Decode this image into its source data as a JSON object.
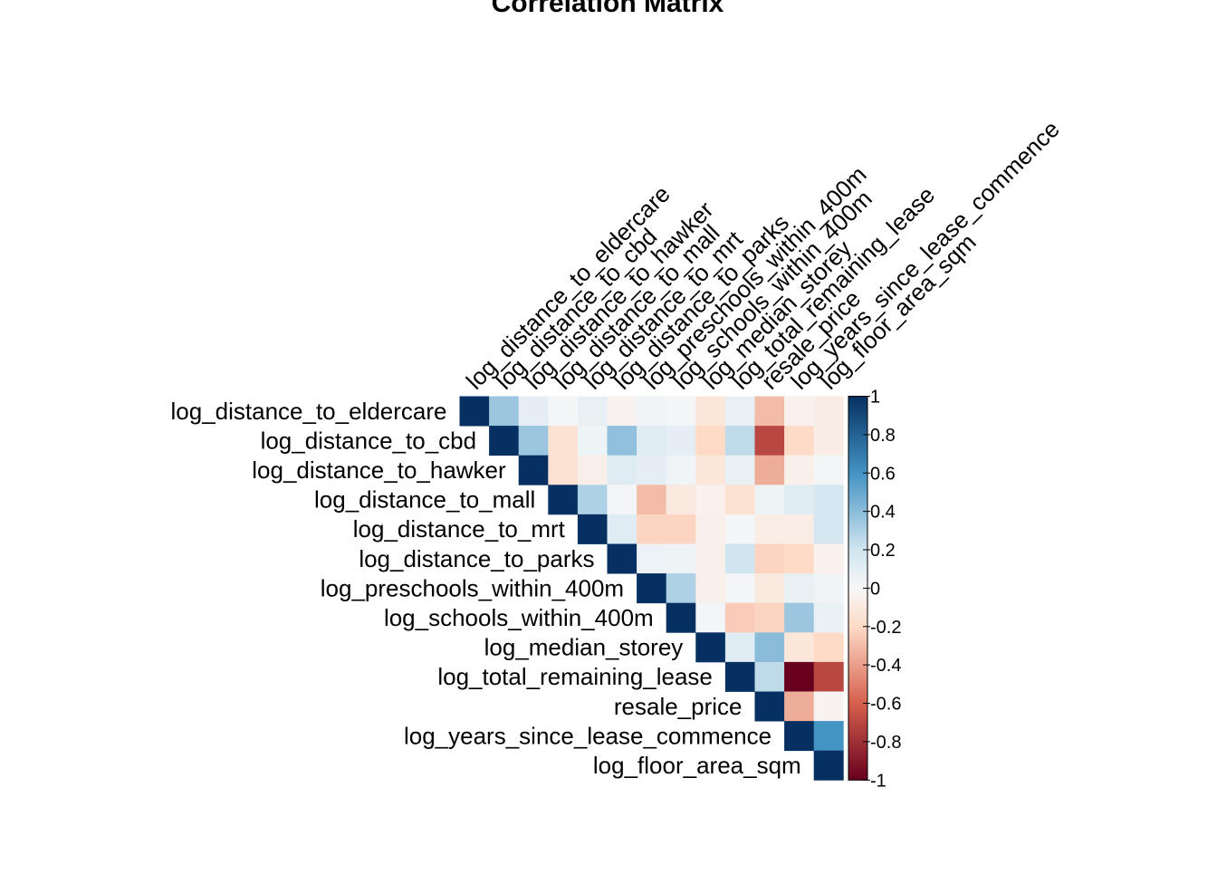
{
  "chart_data": {
    "type": "heatmap",
    "title": "Correlation Matrix",
    "layout": "upper-triangle",
    "variables": [
      "log_distance_to_eldercare",
      "log_distance_to_cbd",
      "log_distance_to_hawker",
      "log_distance_to_mall",
      "log_distance_to_mrt",
      "log_distance_to_parks",
      "log_preschools_within_400m",
      "log_schools_within_400m",
      "log_median_storey",
      "log_total_remaining_lease",
      "resale_price",
      "log_years_since_lease_commence",
      "log_floor_area_sqm"
    ],
    "matrix": [
      [
        1,
        0.35,
        0.1,
        0.02,
        0.08,
        -0.03,
        0.03,
        0.02,
        -0.12,
        0.08,
        -0.3,
        -0.04,
        -0.08
      ],
      [
        null,
        1,
        0.35,
        -0.15,
        0.05,
        0.38,
        0.12,
        0.1,
        -0.2,
        0.25,
        -0.7,
        -0.2,
        -0.08
      ],
      [
        null,
        null,
        1,
        -0.15,
        -0.06,
        0.12,
        0.1,
        0.03,
        -0.12,
        0.08,
        -0.35,
        -0.05,
        0.02
      ],
      [
        null,
        null,
        null,
        1,
        0.3,
        0.02,
        -0.3,
        -0.1,
        -0.04,
        -0.15,
        0.05,
        0.12,
        0.18
      ],
      [
        null,
        null,
        null,
        null,
        1,
        0.12,
        -0.22,
        -0.22,
        -0.05,
        0.02,
        -0.07,
        -0.07,
        0.18
      ],
      [
        null,
        null,
        null,
        null,
        null,
        1,
        0.06,
        0.05,
        -0.06,
        0.2,
        -0.22,
        -0.2,
        -0.04
      ],
      [
        null,
        null,
        null,
        null,
        null,
        null,
        1,
        0.3,
        -0.05,
        0.02,
        -0.1,
        0.08,
        0.03
      ],
      [
        null,
        null,
        null,
        null,
        null,
        null,
        null,
        1,
        0.02,
        -0.25,
        -0.22,
        0.35,
        0.07
      ],
      [
        null,
        null,
        null,
        null,
        null,
        null,
        null,
        null,
        1,
        0.12,
        0.4,
        -0.12,
        -0.2
      ],
      [
        null,
        null,
        null,
        null,
        null,
        null,
        null,
        null,
        null,
        1,
        0.25,
        -1,
        -0.7
      ],
      [
        null,
        null,
        null,
        null,
        null,
        null,
        null,
        null,
        null,
        null,
        1,
        -0.35,
        -0.03
      ],
      [
        null,
        null,
        null,
        null,
        null,
        null,
        null,
        null,
        null,
        null,
        null,
        1,
        0.6
      ],
      [
        null,
        null,
        null,
        null,
        null,
        null,
        null,
        null,
        null,
        null,
        null,
        null,
        1
      ]
    ],
    "colorbar": {
      "range": [
        -1,
        1
      ],
      "ticks": [
        "1",
        "0.8",
        "0.6",
        "0.4",
        "0.2",
        "0",
        "-0.2",
        "-0.4",
        "-0.6",
        "-0.8",
        "-1"
      ],
      "colors": {
        "neg_strong": "#67001F",
        "neg_mid": "#D6604D",
        "neg_light": "#FDDBC7",
        "zero": "#F7F7F7",
        "pos_light": "#D1E5F0",
        "pos_mid": "#4393C3",
        "pos_strong": "#053061"
      }
    },
    "grid": false,
    "legend": "right"
  }
}
